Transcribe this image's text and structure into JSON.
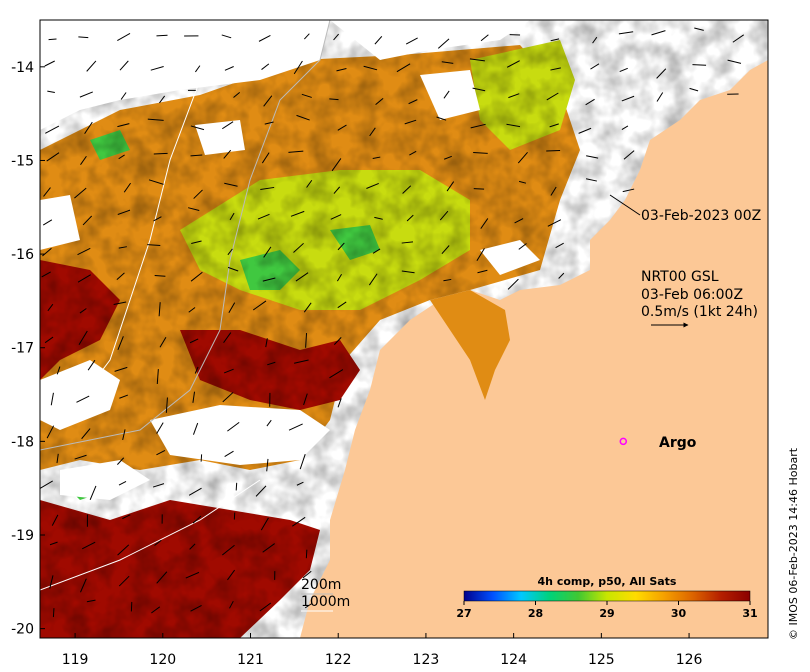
{
  "map": {
    "x_ticks": [
      "119",
      "120",
      "121",
      "122",
      "123",
      "124",
      "125",
      "126"
    ],
    "y_ticks": [
      "-14",
      "-15",
      "-16",
      "-17",
      "-18",
      "-19",
      "-20"
    ],
    "lon_range": [
      118.6,
      126.9
    ],
    "lat_range": [
      -20.1,
      -13.5
    ]
  },
  "annotations": {
    "track_date": "03-Feb-2023 00Z",
    "product": "NRT00 GSL",
    "valid_time": "03-Feb 06:00Z",
    "vector_scale": "0.5m/s (1kt 24h)",
    "argo_label": "Argo",
    "isobath_200": "200m",
    "isobath_1000": "1000m"
  },
  "argo": {
    "lon": 125.25,
    "lat": -18.0,
    "color": "#ff00ff"
  },
  "colorbar": {
    "title": "4h comp, p50, All Sats",
    "min": 27,
    "max": 31,
    "tick_labels": [
      "27",
      "28",
      "29",
      "30",
      "31"
    ],
    "colors": [
      "#00008b",
      "#0050ff",
      "#00c8ff",
      "#00d27a",
      "#40c832",
      "#c8e600",
      "#ffdc00",
      "#f5a000",
      "#dc6400",
      "#b41e00",
      "#8b0000"
    ]
  },
  "colors": {
    "land": "#fcc896",
    "no_data": "#ffffff",
    "warm": "#a00a00",
    "mid": "#e08c14",
    "cool": "#c8dc10",
    "coolest": "#40c840"
  },
  "copyright": "© IMOS 06-Feb-2023 14:46 Hobart"
}
